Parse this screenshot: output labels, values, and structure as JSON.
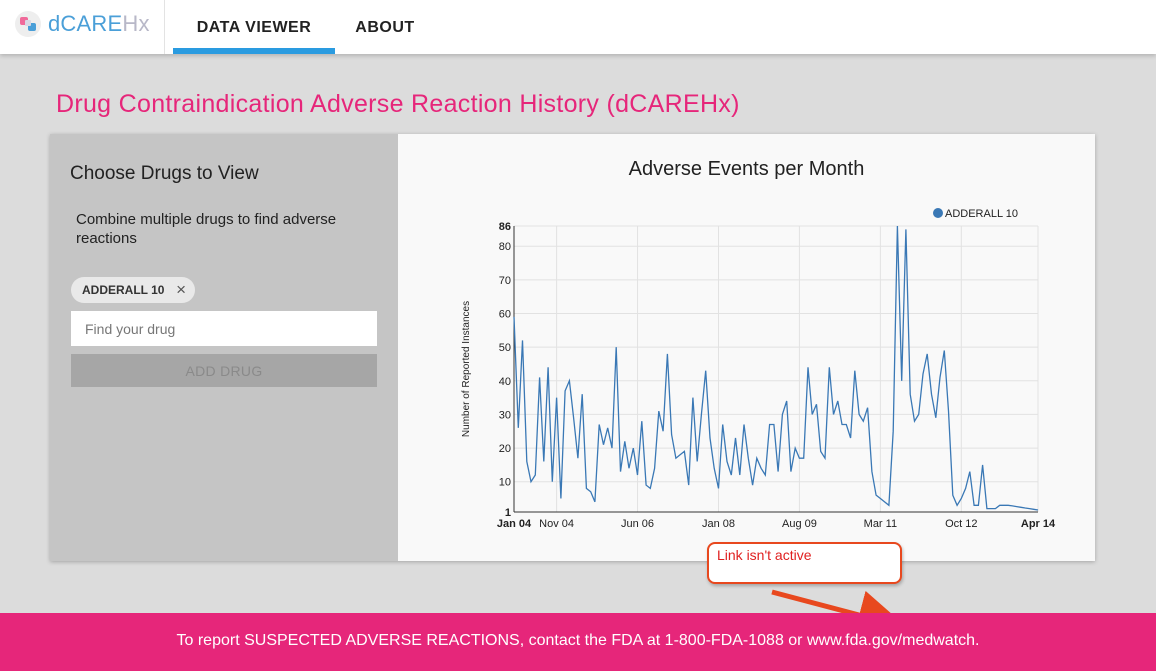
{
  "app": {
    "logo_text_a": "dCARE",
    "logo_text_b": "Hx",
    "nav": [
      {
        "label": "DATA VIEWER",
        "active": true
      },
      {
        "label": "ABOUT",
        "active": false
      }
    ]
  },
  "page": {
    "title": "Drug Contraindication Adverse Reaction History (dCAREHx)"
  },
  "sidebar": {
    "heading": "Choose Drugs to View",
    "hint": "Combine multiple drugs to find adverse reactions",
    "chips": [
      {
        "label": "ADDERALL 10",
        "remove_icon": "close-icon"
      }
    ],
    "search_placeholder": "Find your drug",
    "search_value": "",
    "add_button": "ADD DRUG"
  },
  "annotation": {
    "text": "Link isn't active"
  },
  "footer": {
    "text": "To report SUSPECTED ADVERSE REACTIONS, contact the FDA at 1-800-FDA-1088 or www.fda.gov/medwatch."
  },
  "colors": {
    "accent_pink": "#e6267a",
    "nav_active": "#2a9be0",
    "series": "#3a78b5",
    "callout": "#e8481e"
  },
  "chart_data": {
    "type": "line",
    "title": "Adverse Events per Month",
    "xlabel": "",
    "ylabel": "Number of Reported Instances",
    "ylim": [
      1,
      86
    ],
    "y_ticks": [
      "1",
      "10",
      "20",
      "30",
      "40",
      "50",
      "60",
      "70",
      "80",
      "86"
    ],
    "x_ticks": [
      "Jan 04",
      "Nov 04",
      "Jun 06",
      "Jan 08",
      "Aug 09",
      "Mar 11",
      "Oct 12",
      "Apr 14"
    ],
    "x_tick_positions": [
      0,
      10,
      29,
      48,
      67,
      86,
      105,
      123
    ],
    "legend": "top-right",
    "grid": true,
    "series": [
      {
        "name": "ADDERALL 10",
        "values": [
          59,
          26,
          52,
          16,
          10,
          12,
          41,
          16,
          44,
          10,
          35,
          5,
          37,
          40,
          29,
          17,
          36,
          8,
          7,
          4,
          27,
          21,
          26,
          20,
          50,
          13,
          22,
          14,
          20,
          12,
          28,
          9,
          8,
          14,
          31,
          25,
          48,
          24,
          17,
          18,
          19,
          9,
          35,
          16,
          30,
          43,
          23,
          14,
          8,
          27,
          16,
          12,
          23,
          12,
          27,
          17,
          9,
          17,
          14,
          12,
          27,
          27,
          13,
          30,
          34,
          13,
          20,
          17,
          17,
          44,
          30,
          33,
          19,
          17,
          44,
          30,
          34,
          27,
          27,
          23,
          43,
          30,
          28,
          32,
          13,
          6,
          5,
          4,
          3,
          25,
          86,
          40,
          85,
          36,
          28,
          30,
          42,
          48,
          36,
          29,
          41,
          49,
          31,
          6,
          3,
          5,
          8,
          13,
          3,
          3,
          15,
          2,
          2,
          2,
          3,
          3,
          3,
          2.8,
          2.6,
          2.4,
          2.2,
          2,
          1.8,
          1.6,
          1.4,
          1.2,
          1,
          1,
          1,
          1,
          1,
          1,
          1,
          1,
          1,
          1,
          1,
          1,
          1,
          1,
          1,
          1,
          1,
          1,
          1,
          1,
          1,
          1,
          1,
          1,
          1
        ]
      }
    ]
  }
}
